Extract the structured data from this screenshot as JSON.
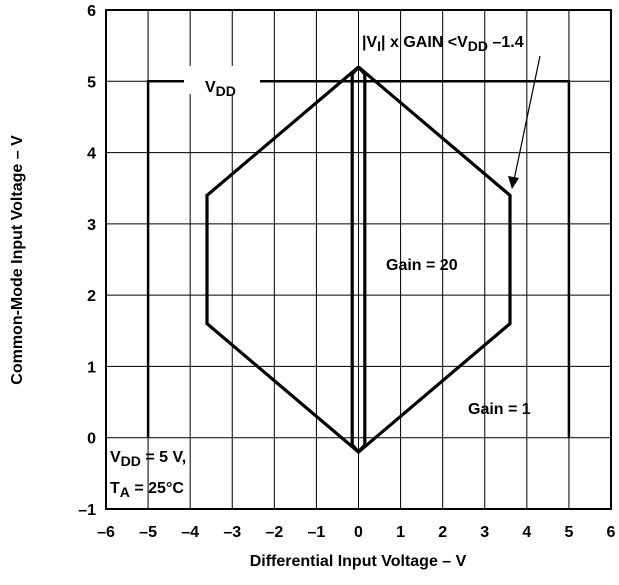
{
  "chart_data": {
    "type": "line",
    "xlabel": "Differential Input Voltage – V",
    "ylabel": "Common-Mode Input Voltage – V",
    "xlim": [
      -6,
      6
    ],
    "ylim": [
      -1,
      6
    ],
    "xticks": [
      {
        "value": -6,
        "label": "–6"
      },
      {
        "value": -5,
        "label": "–5"
      },
      {
        "value": -4,
        "label": "–4"
      },
      {
        "value": -3,
        "label": "–3"
      },
      {
        "value": -2,
        "label": "–2"
      },
      {
        "value": -1,
        "label": "–1"
      },
      0,
      1,
      2,
      3,
      4,
      5,
      6
    ],
    "yticks": [
      {
        "value": -1,
        "label": "–1"
      },
      0,
      1,
      2,
      3,
      4,
      5,
      6
    ],
    "grid": true,
    "series": [
      {
        "color": "#000000",
        "x": [
          -5,
          -5,
          5,
          5
        ],
        "values": [
          0,
          5,
          5,
          0
        ]
      },
      {
        "color": "#000000",
        "x": [
          0,
          3.6,
          3.6,
          0,
          -3.6,
          -3.6,
          0
        ],
        "values": [
          5.2,
          3.4,
          1.6,
          -0.2,
          1.6,
          3.4,
          5.2
        ]
      },
      {
        "color": "#000000",
        "x": [
          0,
          0.15,
          0.15,
          0,
          -0.15,
          -0.15,
          0
        ],
        "values": [
          5.2,
          5.1,
          -0.1,
          -0.2,
          -0.1,
          5.1,
          5.2
        ]
      }
    ],
    "annotations": [
      {
        "segments": [
          {
            "text": "|V"
          },
          {
            "text": "I",
            "sub": true
          },
          {
            "text": "|  x GAIN <V"
          },
          {
            "text": "DD",
            "sub": true
          },
          {
            "text": " –1.4"
          }
        ]
      },
      {
        "segments": [
          {
            "text": "V"
          },
          {
            "text": "DD",
            "sub": true
          }
        ]
      },
      {
        "segments": [
          {
            "text": "Gain = 20"
          }
        ]
      },
      {
        "segments": [
          {
            "text": "Gain = 1"
          }
        ]
      },
      {
        "segments": [
          {
            "text": "V"
          },
          {
            "text": "DD",
            "sub": true
          },
          {
            "text": " = 5 V,"
          }
        ]
      },
      {
        "segments": [
          {
            "text": "T"
          },
          {
            "text": "A",
            "sub": true
          },
          {
            "text": " = 25°C"
          }
        ]
      }
    ]
  }
}
